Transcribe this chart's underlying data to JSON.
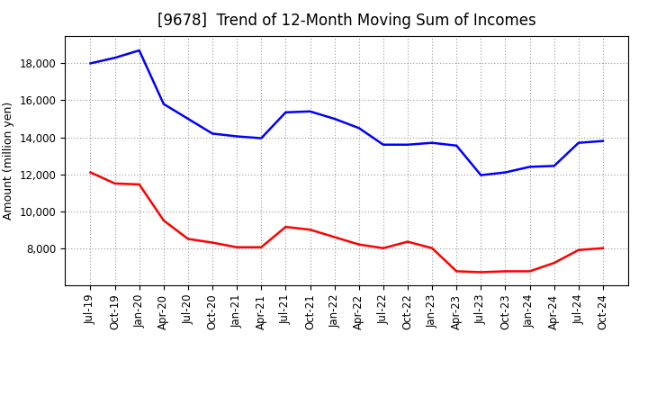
{
  "title": "[9678]  Trend of 12-Month Moving Sum of Incomes",
  "ylabel": "Amount (million yen)",
  "background_color": "#ffffff",
  "plot_bg_color": "#ffffff",
  "grid_color": "#999999",
  "x_labels": [
    "Jul-19",
    "Oct-19",
    "Jan-20",
    "Apr-20",
    "Jul-20",
    "Oct-20",
    "Jan-21",
    "Apr-21",
    "Jul-21",
    "Oct-21",
    "Jan-22",
    "Apr-22",
    "Jul-22",
    "Oct-22",
    "Jan-23",
    "Apr-23",
    "Jul-23",
    "Oct-23",
    "Jan-24",
    "Apr-24",
    "Jul-24",
    "Oct-24"
  ],
  "ordinary_income": [
    18000,
    18300,
    18700,
    15800,
    15000,
    14200,
    14050,
    13950,
    15350,
    15400,
    15000,
    14500,
    13600,
    13600,
    13700,
    13550,
    11950,
    12100,
    12400,
    12450,
    13700,
    13800
  ],
  "net_income": [
    12100,
    11500,
    11450,
    9500,
    8500,
    8300,
    8050,
    8050,
    9150,
    9000,
    8600,
    8200,
    8000,
    8350,
    8000,
    6750,
    6700,
    6750,
    6750,
    7200,
    7900,
    8000
  ],
  "ordinary_color": "#0000ff",
  "net_color": "#ff0000",
  "ylim_min": 6000,
  "ylim_max": 19500,
  "yticks": [
    8000,
    10000,
    12000,
    14000,
    16000,
    18000
  ],
  "line_width": 1.8,
  "title_fontsize": 12,
  "tick_fontsize": 8.5,
  "ylabel_fontsize": 9,
  "legend_fontsize": 9
}
